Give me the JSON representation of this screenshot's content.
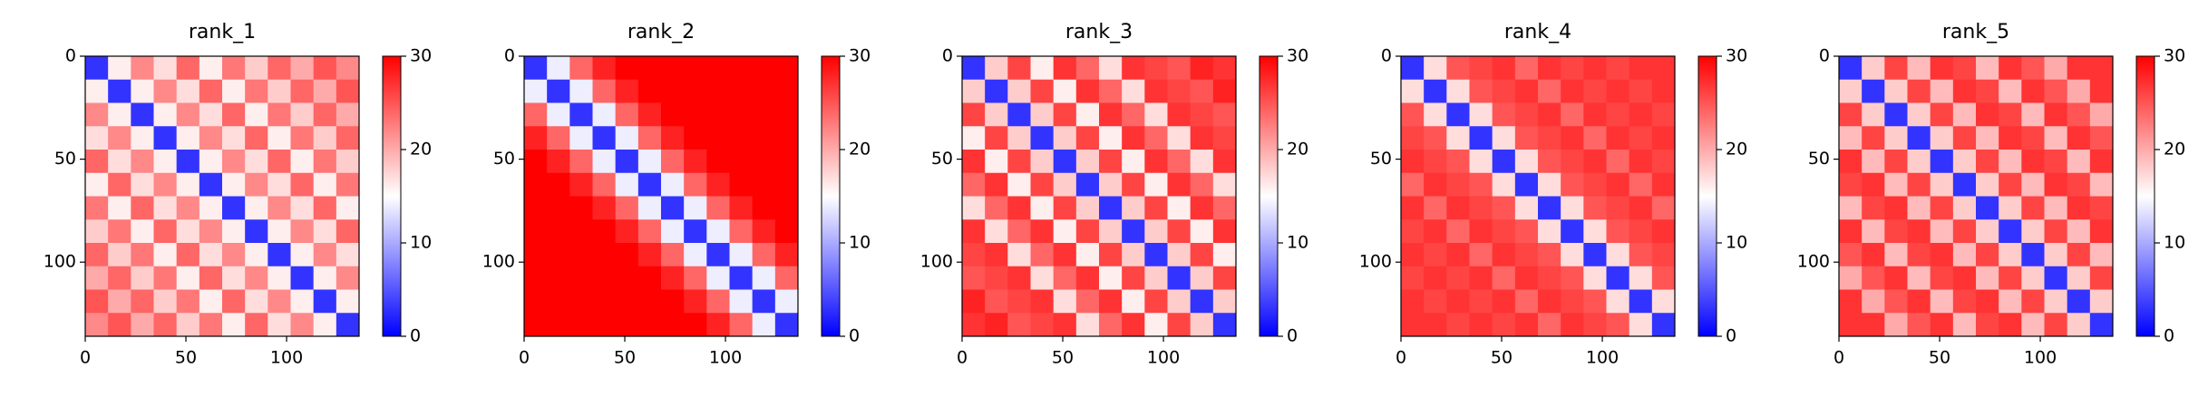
{
  "chart_data": [
    {
      "type": "heatmap",
      "title": "rank_1",
      "colormap": [
        "#0000ff",
        "#ffffff",
        "#ff0000"
      ],
      "clim": [
        0,
        30
      ],
      "cticks": [
        0,
        10,
        20,
        30
      ],
      "xlim": [
        0,
        136
      ],
      "ylim": [
        0,
        136
      ],
      "y_inverted": true,
      "xticks": [
        0,
        50,
        100
      ],
      "yticks": [
        0,
        50,
        100
      ],
      "values": [
        [
          3,
          16,
          22,
          17,
          24,
          16,
          23,
          18,
          24,
          20,
          25,
          22
        ],
        [
          16,
          3,
          16,
          22,
          17,
          24,
          16,
          23,
          18,
          24,
          20,
          25
        ],
        [
          22,
          16,
          3,
          16,
          22,
          17,
          24,
          16,
          23,
          18,
          24,
          20
        ],
        [
          17,
          22,
          16,
          3,
          16,
          22,
          17,
          24,
          16,
          23,
          18,
          24
        ],
        [
          24,
          17,
          22,
          16,
          3,
          16,
          22,
          17,
          24,
          16,
          23,
          18
        ],
        [
          16,
          24,
          17,
          22,
          16,
          3,
          16,
          22,
          17,
          24,
          16,
          23
        ],
        [
          23,
          16,
          24,
          17,
          22,
          16,
          3,
          16,
          22,
          17,
          24,
          16
        ],
        [
          18,
          23,
          16,
          24,
          17,
          22,
          16,
          3,
          16,
          22,
          17,
          24
        ],
        [
          24,
          18,
          23,
          16,
          24,
          17,
          22,
          16,
          3,
          16,
          22,
          17
        ],
        [
          20,
          24,
          18,
          23,
          16,
          24,
          17,
          22,
          16,
          3,
          16,
          22
        ],
        [
          25,
          20,
          24,
          18,
          23,
          16,
          24,
          17,
          22,
          16,
          3,
          16
        ],
        [
          22,
          25,
          20,
          24,
          18,
          23,
          16,
          24,
          17,
          22,
          16,
          3
        ]
      ]
    },
    {
      "type": "heatmap",
      "title": "rank_2",
      "colormap": [
        "#0000ff",
        "#ffffff",
        "#ff0000"
      ],
      "clim": [
        0,
        30
      ],
      "cticks": [
        0,
        10,
        20,
        30
      ],
      "xlim": [
        0,
        136
      ],
      "ylim": [
        0,
        136
      ],
      "y_inverted": true,
      "xticks": [
        0,
        50,
        100
      ],
      "yticks": [
        0,
        50,
        100
      ],
      "values": [
        [
          3,
          14,
          24,
          28,
          30,
          30,
          30,
          30,
          30,
          30,
          30,
          30
        ],
        [
          14,
          3,
          14,
          24,
          28,
          30,
          30,
          30,
          30,
          30,
          30,
          30
        ],
        [
          24,
          14,
          3,
          14,
          24,
          28,
          30,
          30,
          30,
          30,
          30,
          30
        ],
        [
          28,
          24,
          14,
          3,
          14,
          24,
          28,
          30,
          30,
          30,
          30,
          30
        ],
        [
          30,
          28,
          24,
          14,
          3,
          14,
          24,
          28,
          30,
          30,
          30,
          30
        ],
        [
          30,
          30,
          28,
          24,
          14,
          3,
          14,
          24,
          28,
          30,
          30,
          30
        ],
        [
          30,
          30,
          30,
          28,
          24,
          14,
          3,
          14,
          24,
          28,
          30,
          30
        ],
        [
          30,
          30,
          30,
          30,
          28,
          24,
          14,
          3,
          14,
          24,
          28,
          30
        ],
        [
          30,
          30,
          30,
          30,
          30,
          28,
          24,
          14,
          3,
          14,
          24,
          28
        ],
        [
          30,
          30,
          30,
          30,
          30,
          30,
          28,
          24,
          14,
          3,
          14,
          24
        ],
        [
          30,
          30,
          30,
          30,
          30,
          30,
          30,
          28,
          24,
          14,
          3,
          14
        ],
        [
          30,
          30,
          30,
          30,
          30,
          30,
          30,
          30,
          28,
          24,
          14,
          3
        ]
      ]
    },
    {
      "type": "heatmap",
      "title": "rank_3",
      "colormap": [
        "#0000ff",
        "#ffffff",
        "#ff0000"
      ],
      "clim": [
        0,
        30
      ],
      "cticks": [
        0,
        10,
        20,
        30
      ],
      "xlim": [
        0,
        136
      ],
      "ylim": [
        0,
        136
      ],
      "y_inverted": true,
      "xticks": [
        0,
        50,
        100
      ],
      "yticks": [
        0,
        50,
        100
      ],
      "values": [
        [
          3,
          18,
          26,
          16,
          27,
          24,
          17,
          27,
          26,
          25,
          28,
          27
        ],
        [
          18,
          3,
          18,
          26,
          16,
          27,
          24,
          17,
          27,
          26,
          25,
          28
        ],
        [
          26,
          18,
          3,
          18,
          26,
          16,
          27,
          24,
          17,
          27,
          26,
          25
        ],
        [
          16,
          26,
          18,
          3,
          18,
          26,
          16,
          27,
          24,
          17,
          27,
          26
        ],
        [
          27,
          16,
          26,
          18,
          3,
          18,
          26,
          16,
          27,
          24,
          17,
          27
        ],
        [
          24,
          27,
          16,
          26,
          18,
          3,
          18,
          26,
          16,
          27,
          24,
          17
        ],
        [
          17,
          24,
          27,
          16,
          26,
          18,
          3,
          18,
          26,
          16,
          27,
          24
        ],
        [
          27,
          17,
          24,
          27,
          16,
          26,
          18,
          3,
          18,
          26,
          16,
          27
        ],
        [
          26,
          27,
          17,
          24,
          27,
          16,
          26,
          18,
          3,
          18,
          26,
          16
        ],
        [
          25,
          26,
          27,
          17,
          24,
          27,
          16,
          26,
          18,
          3,
          18,
          26
        ],
        [
          28,
          25,
          26,
          27,
          17,
          24,
          27,
          16,
          26,
          18,
          3,
          18
        ],
        [
          27,
          28,
          25,
          26,
          27,
          17,
          24,
          27,
          16,
          26,
          18,
          3
        ]
      ]
    },
    {
      "type": "heatmap",
      "title": "rank_4",
      "colormap": [
        "#0000ff",
        "#ffffff",
        "#ff0000"
      ],
      "clim": [
        0,
        30
      ],
      "cticks": [
        0,
        10,
        20,
        30
      ],
      "xlim": [
        0,
        136
      ],
      "ylim": [
        0,
        136
      ],
      "y_inverted": true,
      "xticks": [
        0,
        50,
        100
      ],
      "yticks": [
        0,
        50,
        100
      ],
      "values": [
        [
          3,
          17,
          25,
          26,
          27,
          24,
          27,
          26,
          27,
          26,
          27,
          27
        ],
        [
          17,
          3,
          17,
          25,
          26,
          27,
          24,
          27,
          26,
          27,
          26,
          27
        ],
        [
          25,
          17,
          3,
          17,
          25,
          26,
          27,
          24,
          27,
          26,
          27,
          26
        ],
        [
          26,
          25,
          17,
          3,
          17,
          25,
          26,
          27,
          24,
          27,
          26,
          27
        ],
        [
          27,
          26,
          25,
          17,
          3,
          17,
          25,
          26,
          27,
          24,
          27,
          26
        ],
        [
          24,
          27,
          26,
          25,
          17,
          3,
          17,
          25,
          26,
          27,
          24,
          27
        ],
        [
          27,
          24,
          27,
          26,
          25,
          17,
          3,
          17,
          25,
          26,
          27,
          24
        ],
        [
          26,
          27,
          24,
          27,
          26,
          25,
          17,
          3,
          17,
          25,
          26,
          27
        ],
        [
          27,
          26,
          27,
          24,
          27,
          26,
          25,
          17,
          3,
          17,
          25,
          26
        ],
        [
          26,
          27,
          26,
          27,
          24,
          27,
          26,
          25,
          17,
          3,
          17,
          25
        ],
        [
          27,
          26,
          27,
          26,
          27,
          24,
          27,
          26,
          25,
          17,
          3,
          17
        ],
        [
          27,
          27,
          26,
          27,
          26,
          27,
          24,
          27,
          26,
          25,
          17,
          3
        ]
      ]
    },
    {
      "type": "heatmap",
      "title": "rank_5",
      "colormap": [
        "#0000ff",
        "#ffffff",
        "#ff0000"
      ],
      "clim": [
        0,
        30
      ],
      "cticks": [
        0,
        10,
        20,
        30
      ],
      "xlim": [
        0,
        136
      ],
      "ylim": [
        0,
        136
      ],
      "y_inverted": true,
      "xticks": [
        0,
        50,
        100
      ],
      "yticks": [
        0,
        50,
        100
      ],
      "values": [
        [
          3,
          18,
          26,
          19,
          27,
          26,
          19,
          27,
          25,
          20,
          27,
          27
        ],
        [
          18,
          3,
          18,
          26,
          19,
          27,
          26,
          19,
          27,
          25,
          20,
          27
        ],
        [
          26,
          18,
          3,
          18,
          26,
          19,
          27,
          26,
          19,
          27,
          25,
          20
        ],
        [
          19,
          26,
          18,
          3,
          18,
          26,
          19,
          27,
          26,
          19,
          27,
          25
        ],
        [
          27,
          19,
          26,
          18,
          3,
          18,
          26,
          19,
          27,
          26,
          19,
          27
        ],
        [
          26,
          27,
          19,
          26,
          18,
          3,
          18,
          26,
          19,
          27,
          26,
          19
        ],
        [
          19,
          26,
          27,
          19,
          26,
          18,
          3,
          18,
          26,
          19,
          27,
          26
        ],
        [
          27,
          19,
          26,
          27,
          19,
          26,
          18,
          3,
          18,
          26,
          19,
          27
        ],
        [
          25,
          27,
          19,
          26,
          27,
          19,
          26,
          18,
          3,
          18,
          26,
          19
        ],
        [
          20,
          25,
          27,
          19,
          26,
          27,
          19,
          26,
          18,
          3,
          18,
          26
        ],
        [
          27,
          20,
          25,
          27,
          19,
          26,
          27,
          19,
          26,
          18,
          3,
          18
        ],
        [
          27,
          27,
          20,
          25,
          27,
          19,
          26,
          27,
          19,
          26,
          18,
          3
        ]
      ]
    }
  ]
}
